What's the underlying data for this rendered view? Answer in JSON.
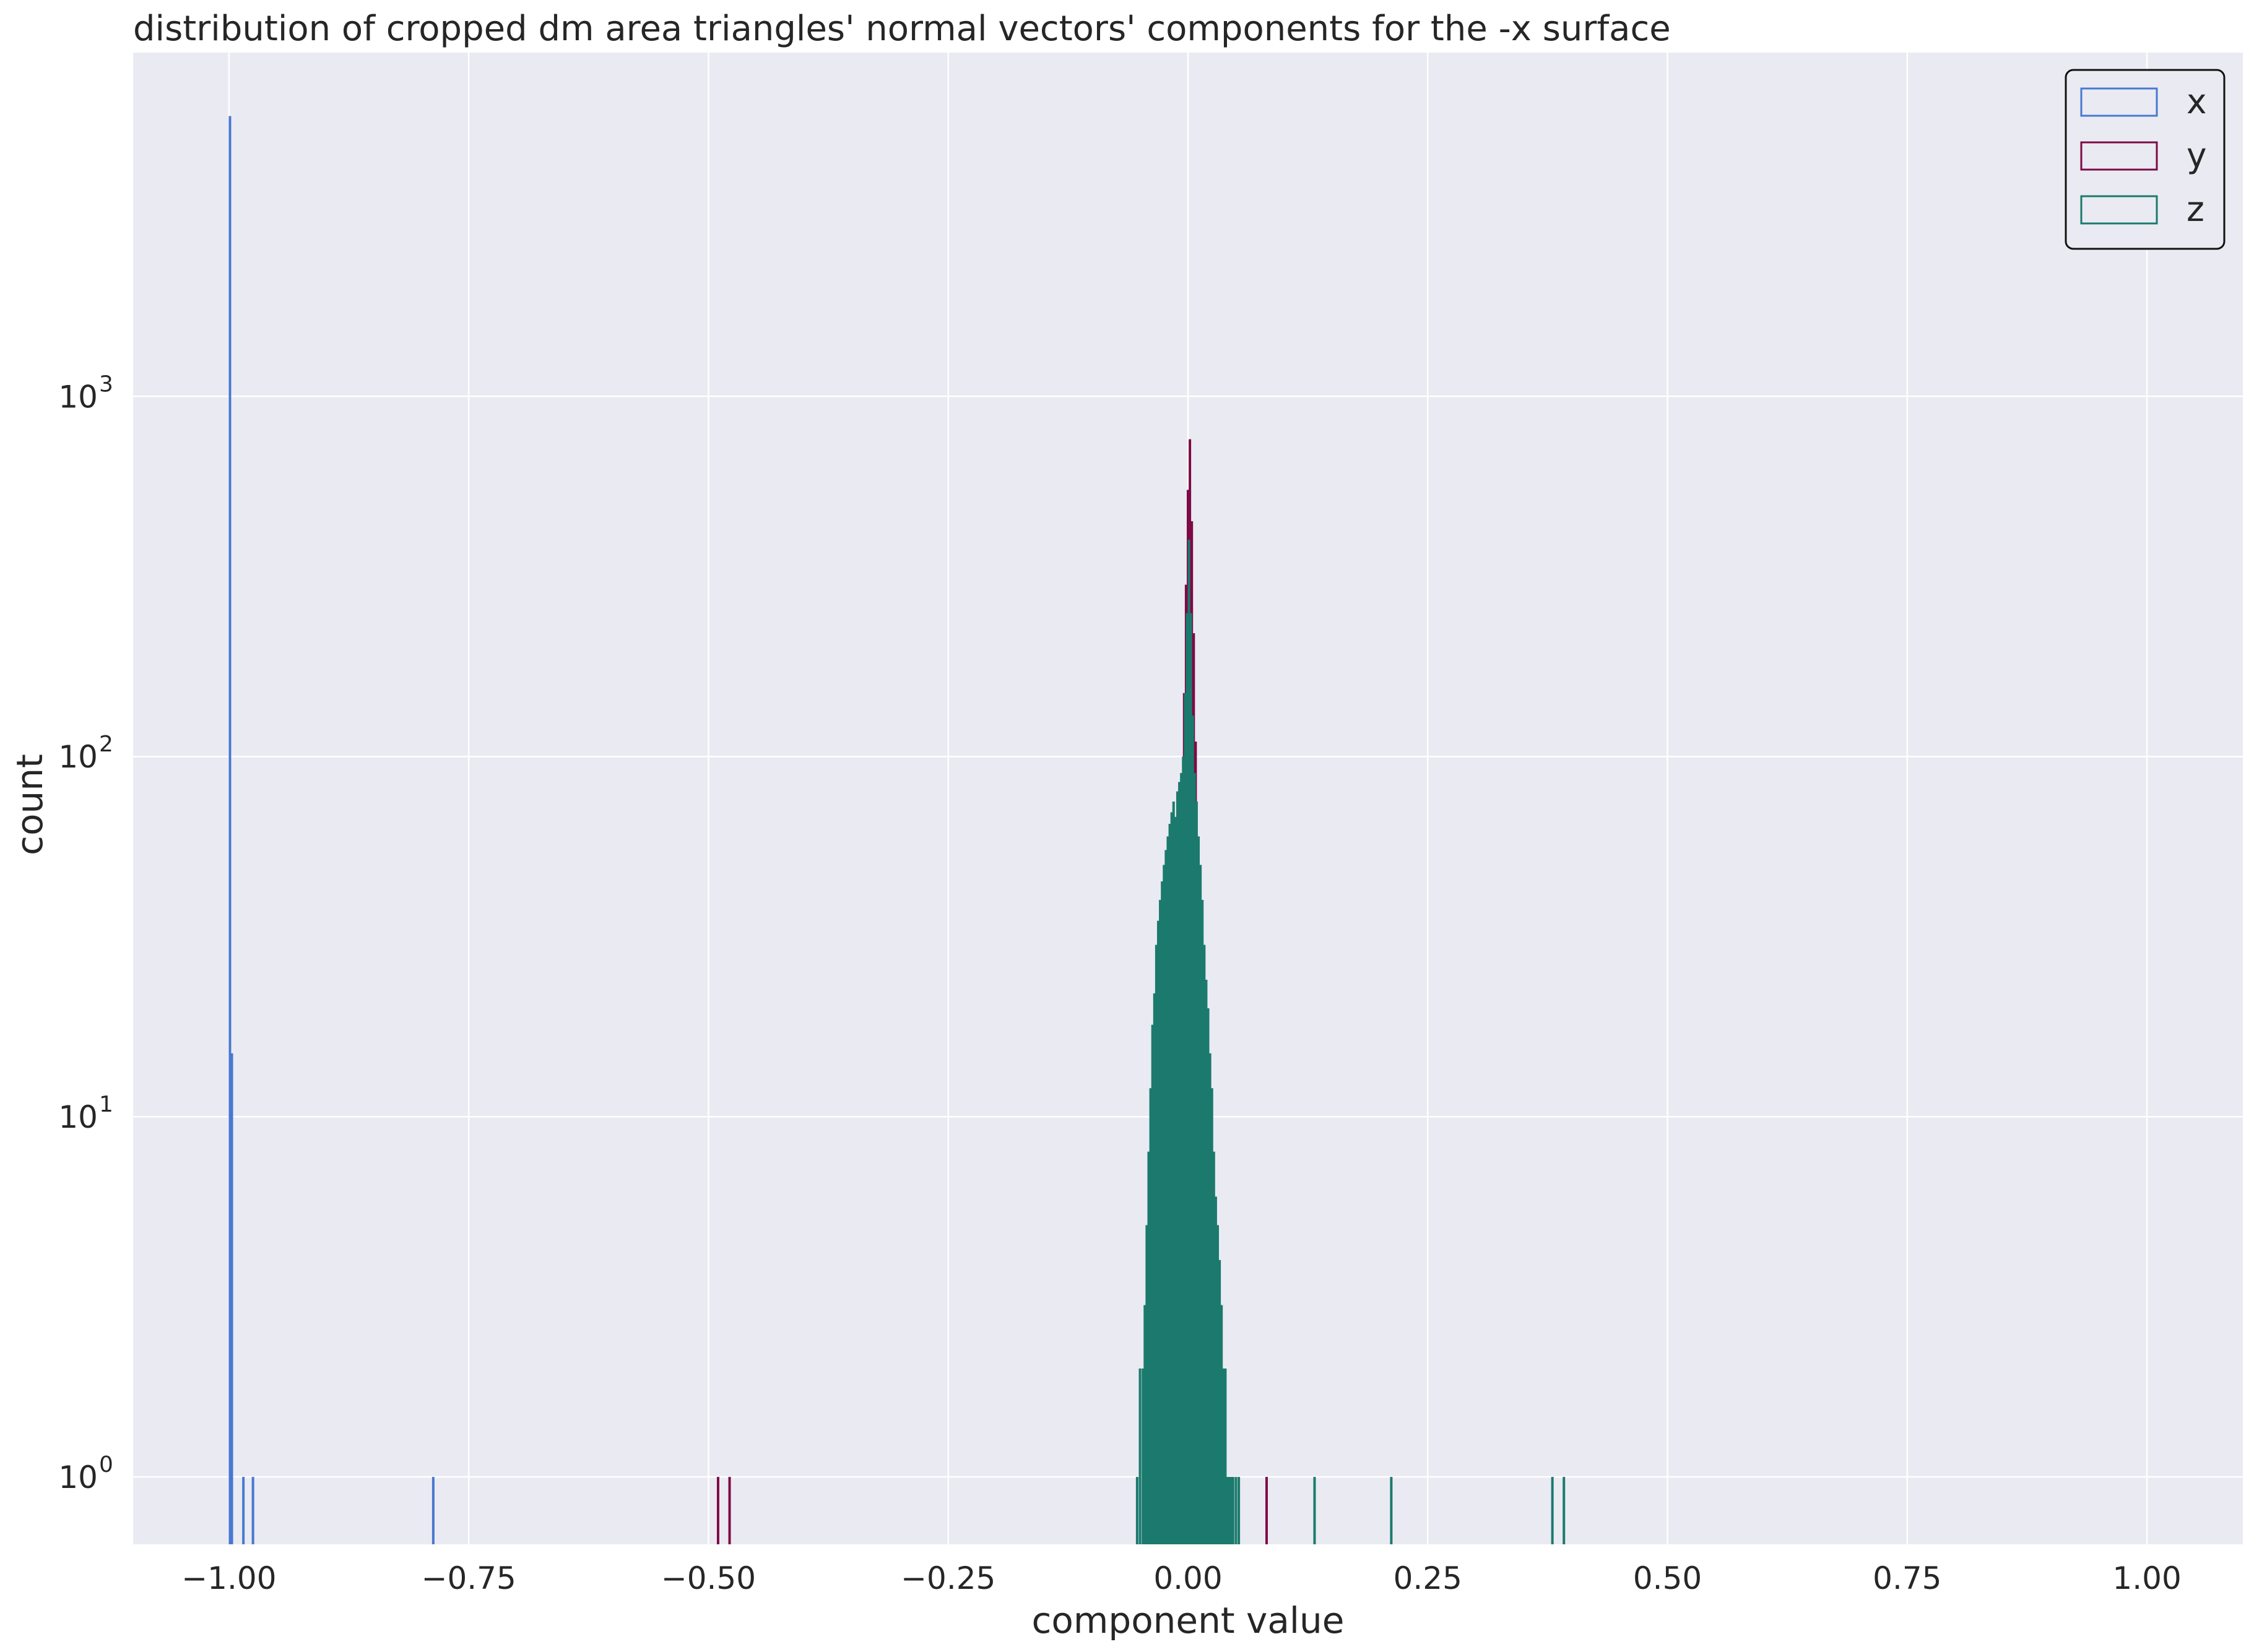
{
  "chart_data": {
    "type": "histogram-step",
    "title": "distribution of cropped dm area triangles' normal vectors' components for the -x surface",
    "xlabel": "component value",
    "ylabel": "count",
    "xlim": [
      -1.1,
      1.1
    ],
    "ylim": [
      0.65,
      9000
    ],
    "yscale": "log",
    "grid": true,
    "background": "#eaeaf2",
    "x_ticks": [
      {
        "value": -1.0,
        "label": "−1.00"
      },
      {
        "value": -0.75,
        "label": "−0.75"
      },
      {
        "value": -0.5,
        "label": "−0.50"
      },
      {
        "value": -0.25,
        "label": "−0.25"
      },
      {
        "value": 0.0,
        "label": "0.00"
      },
      {
        "value": 0.25,
        "label": "0.25"
      },
      {
        "value": 0.5,
        "label": "0.50"
      },
      {
        "value": 0.75,
        "label": "0.75"
      },
      {
        "value": 1.0,
        "label": "1.00"
      }
    ],
    "y_ticks": [
      {
        "value": 1,
        "base": "10",
        "exp": "0"
      },
      {
        "value": 10,
        "base": "10",
        "exp": "1"
      },
      {
        "value": 100,
        "base": "10",
        "exp": "2"
      },
      {
        "value": 1000,
        "base": "10",
        "exp": "3"
      }
    ],
    "legend_position": "top-right",
    "series": [
      {
        "name": "x",
        "color": "#4878d0",
        "points": [
          [
            -0.999,
            6000
          ],
          [
            -0.997,
            15
          ],
          [
            -0.985,
            1
          ],
          [
            -0.975,
            1
          ],
          [
            -0.787,
            1
          ]
        ]
      },
      {
        "name": "y",
        "color": "#7d0a45",
        "points": [
          [
            -0.49,
            1
          ],
          [
            -0.478,
            1
          ],
          [
            -0.028,
            1
          ],
          [
            -0.026,
            1
          ],
          [
            -0.024,
            1
          ],
          [
            -0.022,
            1
          ],
          [
            -0.02,
            2
          ],
          [
            -0.018,
            3
          ],
          [
            -0.016,
            5
          ],
          [
            -0.014,
            10
          ],
          [
            -0.012,
            15
          ],
          [
            -0.01,
            25
          ],
          [
            -0.008,
            45
          ],
          [
            -0.006,
            80
          ],
          [
            -0.004,
            150
          ],
          [
            -0.002,
            300
          ],
          [
            0.0,
            550
          ],
          [
            0.002,
            760
          ],
          [
            0.004,
            450
          ],
          [
            0.006,
            220
          ],
          [
            0.008,
            110
          ],
          [
            0.01,
            55
          ],
          [
            0.012,
            30
          ],
          [
            0.014,
            18
          ],
          [
            0.016,
            10
          ],
          [
            0.018,
            6
          ],
          [
            0.02,
            3
          ],
          [
            0.022,
            2
          ],
          [
            0.025,
            1
          ],
          [
            0.028,
            1
          ],
          [
            0.031,
            1
          ],
          [
            0.082,
            1
          ]
        ]
      },
      {
        "name": "z",
        "color": "#1b7a6d",
        "points": [
          [
            -0.053,
            1
          ],
          [
            -0.05,
            2
          ],
          [
            -0.047,
            2
          ],
          [
            -0.045,
            3
          ],
          [
            -0.043,
            5
          ],
          [
            -0.041,
            8
          ],
          [
            -0.039,
            12
          ],
          [
            -0.037,
            18
          ],
          [
            -0.035,
            22
          ],
          [
            -0.033,
            30
          ],
          [
            -0.031,
            35
          ],
          [
            -0.029,
            40
          ],
          [
            -0.027,
            45
          ],
          [
            -0.025,
            50
          ],
          [
            -0.023,
            55
          ],
          [
            -0.021,
            60
          ],
          [
            -0.019,
            65
          ],
          [
            -0.017,
            70
          ],
          [
            -0.015,
            75
          ],
          [
            -0.013,
            68
          ],
          [
            -0.011,
            80
          ],
          [
            -0.009,
            85
          ],
          [
            -0.007,
            90
          ],
          [
            -0.005,
            100
          ],
          [
            -0.003,
            150
          ],
          [
            -0.001,
            250
          ],
          [
            0.001,
            400
          ],
          [
            0.003,
            250
          ],
          [
            0.005,
            130
          ],
          [
            0.007,
            90
          ],
          [
            0.009,
            75
          ],
          [
            0.011,
            60
          ],
          [
            0.013,
            50
          ],
          [
            0.015,
            40
          ],
          [
            0.017,
            30
          ],
          [
            0.019,
            24
          ],
          [
            0.021,
            20
          ],
          [
            0.023,
            15
          ],
          [
            0.025,
            12
          ],
          [
            0.027,
            8
          ],
          [
            0.029,
            6
          ],
          [
            0.031,
            5
          ],
          [
            0.033,
            4
          ],
          [
            0.035,
            3
          ],
          [
            0.037,
            2
          ],
          [
            0.039,
            2
          ],
          [
            0.041,
            1
          ],
          [
            0.043,
            1
          ],
          [
            0.045,
            1
          ],
          [
            0.047,
            1
          ],
          [
            0.05,
            1
          ],
          [
            0.053,
            1
          ],
          [
            0.132,
            1
          ],
          [
            0.212,
            1
          ],
          [
            0.38,
            1
          ],
          [
            0.392,
            1
          ]
        ]
      }
    ]
  }
}
